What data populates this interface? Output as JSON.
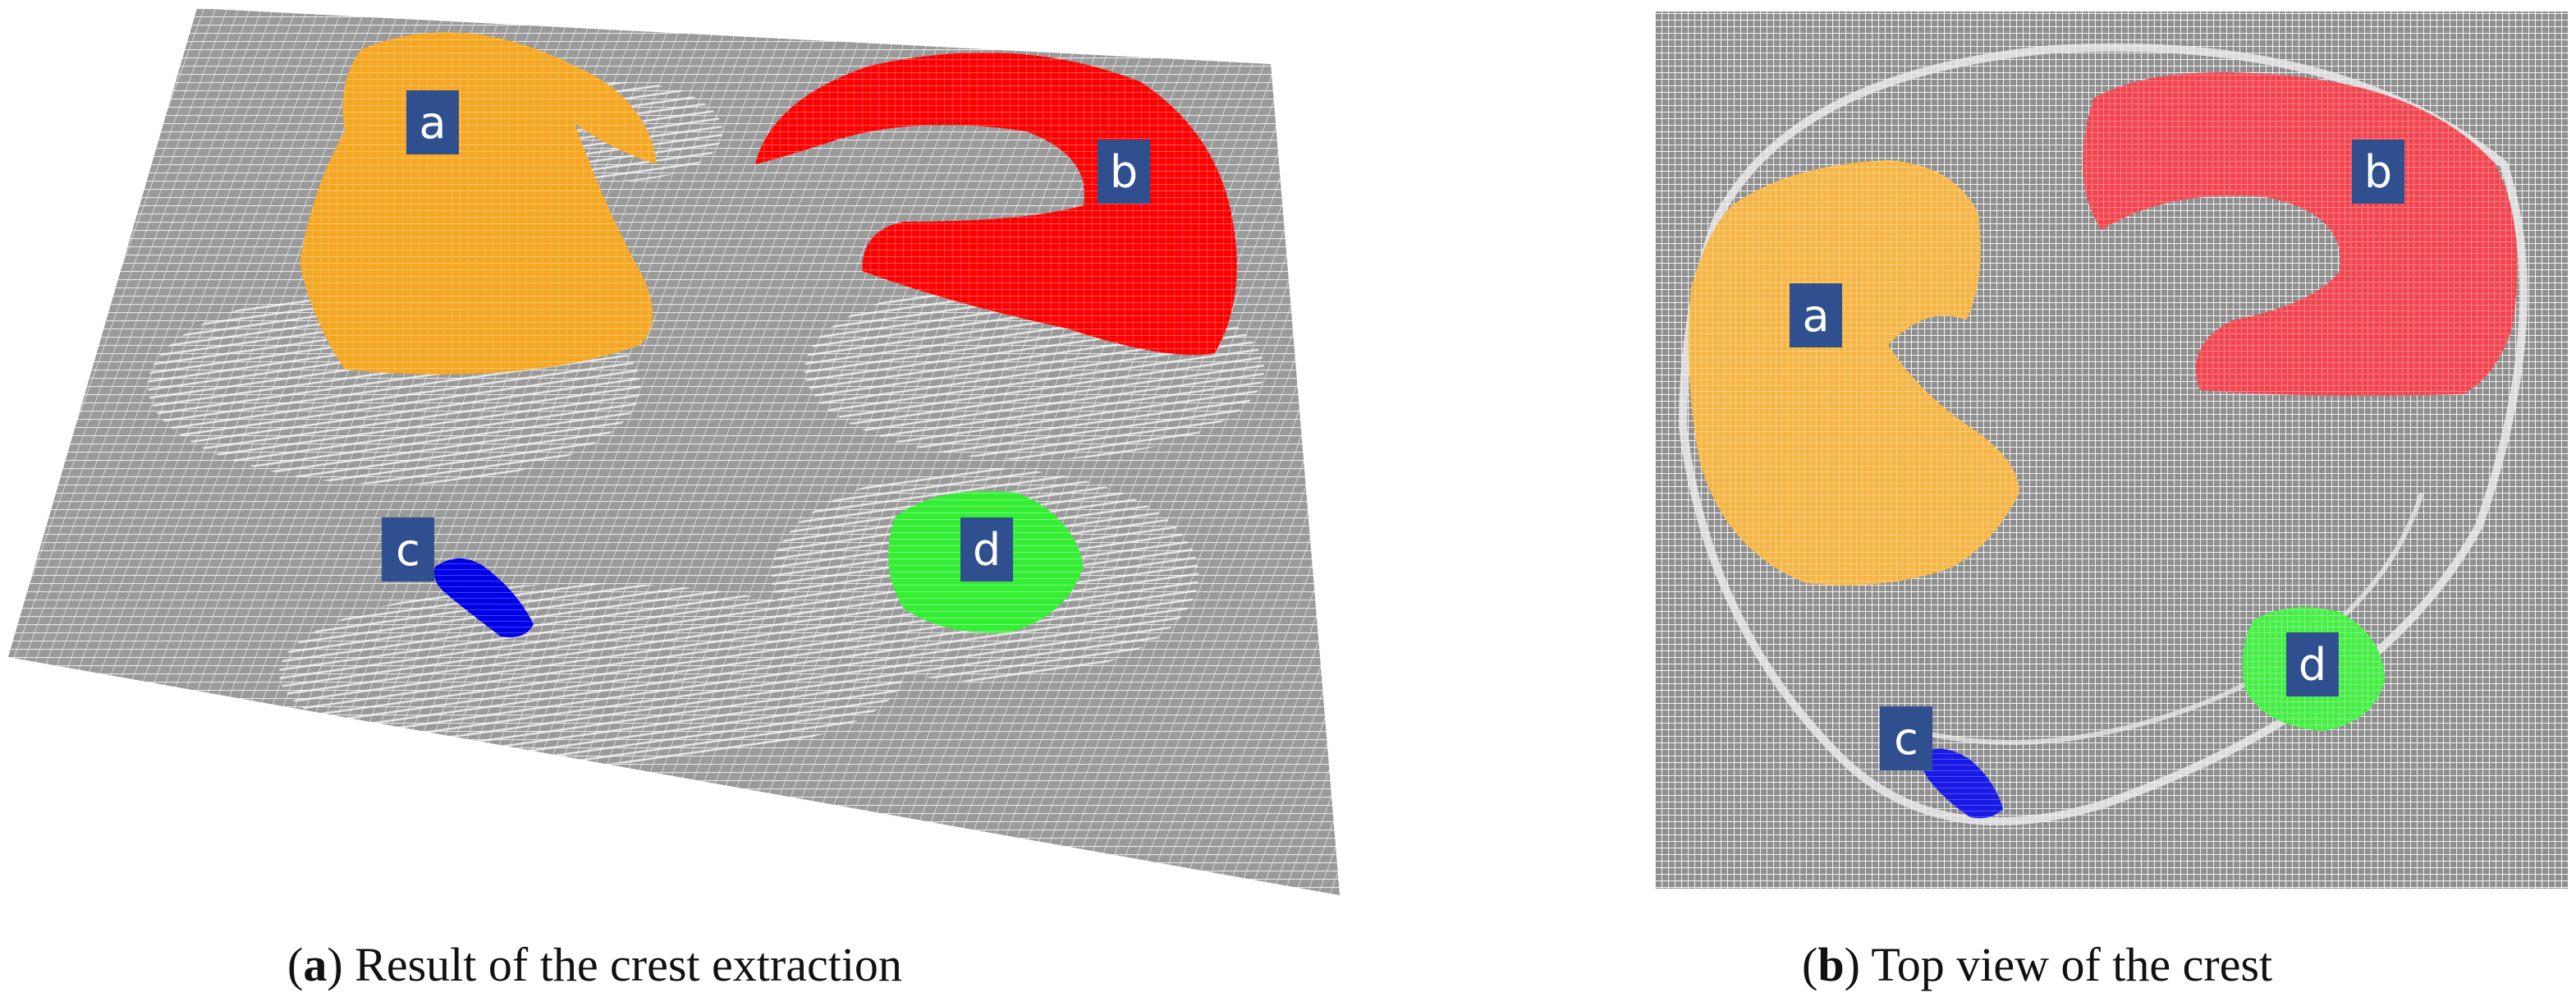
{
  "panels": [
    {
      "id": "a",
      "caption_label": "a",
      "caption_text": "Result of the crest extraction",
      "regions": [
        {
          "label": "a",
          "color": "#f5a623"
        },
        {
          "label": "b",
          "color": "#ff0000"
        },
        {
          "label": "c",
          "color": "#0000e6"
        },
        {
          "label": "d",
          "color": "#33ee33"
        }
      ]
    },
    {
      "id": "b",
      "caption_label": "b",
      "caption_text": "Top view of the crest",
      "regions": [
        {
          "label": "a",
          "color": "#f5b443"
        },
        {
          "label": "b",
          "color": "#f2454f"
        },
        {
          "label": "c",
          "color": "#1a1ae6"
        },
        {
          "label": "d",
          "color": "#44ee44"
        }
      ]
    }
  ],
  "colors": {
    "mesh": "#8c8c8c",
    "mesh_bg": "#d9d9d9",
    "label_box": "#2f4f8f",
    "label_text": "#ffffff"
  }
}
